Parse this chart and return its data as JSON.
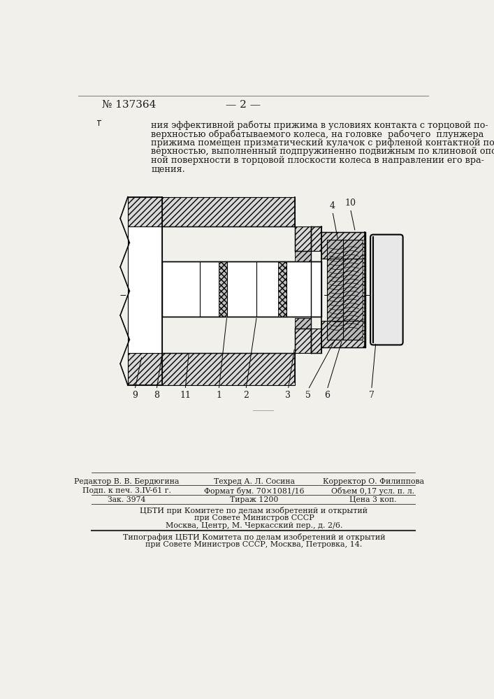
{
  "page_number": "№ 137364",
  "page_num_right": "— 2 —",
  "body_text": [
    "ния эффективной работы прижима в условиях контакта с торцовой по-",
    "верхностью обрабатываемого колеса, на головке  рабочего  плунжера",
    "прижима помещен призматический кулачок с рифленой контактной по-",
    "верхностью, выполненный подпружиненно подвижным по клиновой опор-",
    "ной поверхности в торцовой плоскости колеса в направлении его вра-",
    "щения."
  ],
  "footer_line1_left": "Редактор В. В. Бердюгина",
  "footer_line1_mid": "Техред А. Л. Сосина",
  "footer_line1_right": "Корректор О. Филиппова",
  "footer_line2_left": "Подп. к печ. 3.IV-61 г.",
  "footer_line2_mid": "Формат бум. 70×1081/16",
  "footer_line2_right": "Объем 0,17 усл. п. л.",
  "footer_line3_left": "Зак. 3974",
  "footer_line3_mid": "Тираж 1200",
  "footer_line3_right": "Цена 3 коп.",
  "footer_line4": "ЦБТИ при Комитете по делам изобретений и открытий",
  "footer_line5": "при Совете Министров СССР",
  "footer_line6": "Москва, Центр, М. Черкасский пер., д. 2/6.",
  "footer_line7": "Типография ЦБТИ Комитета по делам изобретений и открытий",
  "footer_line8": "при Совете Министров СССР, Москва, Петровка, 14.",
  "bg_color": "#f2f0eb",
  "text_color": "#1a1a1a",
  "drawing_color": "#000000"
}
